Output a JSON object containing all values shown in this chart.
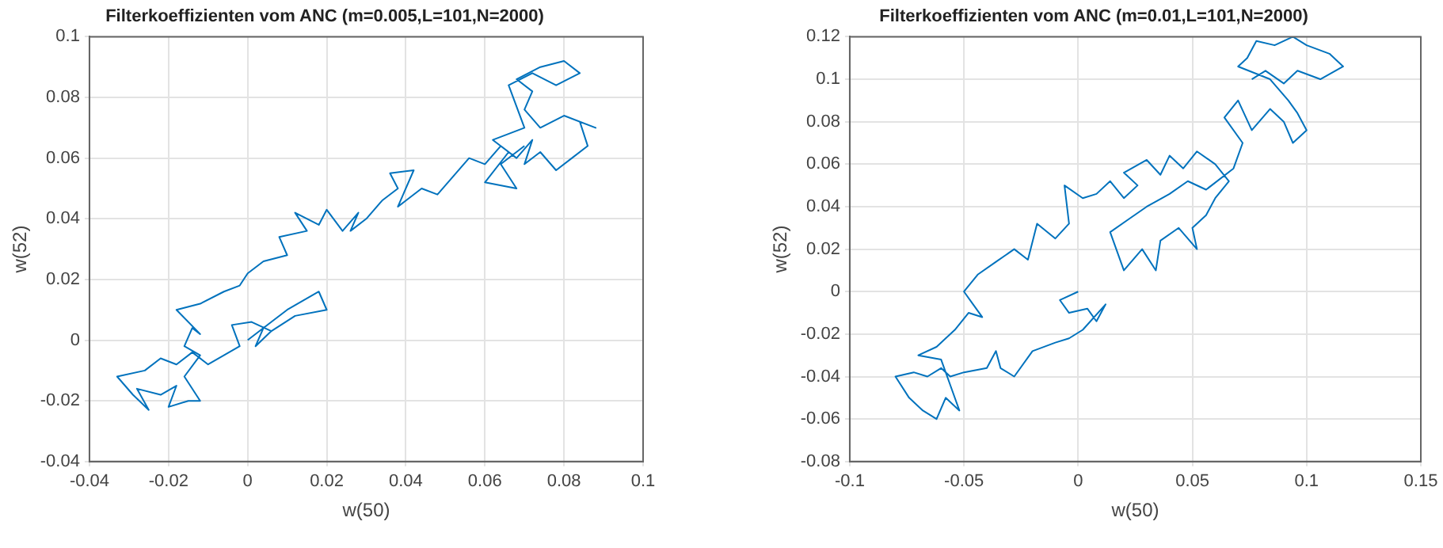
{
  "chart_data": [
    {
      "type": "line",
      "title": "Filterkoeffizienten vom ANC (m=0.005,L=101,N=2000)",
      "xlabel": "w(50)",
      "ylabel": "w(52)",
      "xlim": [
        -0.04,
        0.1
      ],
      "xticks": [
        -0.04,
        -0.02,
        0,
        0.02,
        0.04,
        0.06,
        0.08,
        0.1
      ],
      "ylim": [
        -0.04,
        0.1
      ],
      "yticks": [
        -0.04,
        -0.02,
        0,
        0.02,
        0.04,
        0.06,
        0.08,
        0.1
      ],
      "grid": true,
      "marker": "none",
      "line_style": "solid",
      "series": [
        {
          "color": "#0072bd",
          "x": [
            0,
            0.006,
            0.01,
            0.014,
            0.018,
            0.02,
            0.012,
            0.006,
            0.002,
            0.004,
            0.002,
            0.006,
            0.001,
            -0.004,
            -0.002,
            -0.006,
            -0.01,
            -0.014,
            -0.018,
            -0.022,
            -0.026,
            -0.033,
            -0.029,
            -0.025,
            -0.028,
            -0.022,
            -0.018,
            -0.02,
            -0.015,
            -0.012,
            -0.016,
            -0.012,
            -0.016,
            -0.014,
            -0.012,
            -0.018,
            -0.012,
            -0.006,
            -0.002,
            0,
            0.004,
            0.01,
            0.008,
            0.015,
            0.012,
            0.018,
            0.02,
            0.024,
            0.028,
            0.026,
            0.03,
            0.034,
            0.038,
            0.036,
            0.042,
            0.038,
            0.044,
            0.048,
            0.052,
            0.056,
            0.06,
            0.064,
            0.068,
            0.072,
            0.07,
            0.074,
            0.078,
            0.082,
            0.086,
            0.084,
            0.088,
            0.08,
            0.074,
            0.07,
            0.072,
            0.068,
            0.074,
            0.08,
            0.084,
            0.078,
            0.072,
            0.066,
            0.07,
            0.062,
            0.066,
            0.06,
            0.068,
            0.064,
            0.07
          ],
          "values": [
            0,
            0.006,
            0.01,
            0.013,
            0.016,
            0.01,
            0.008,
            0.003,
            -0.002,
            0.004,
            -0.002,
            0.003,
            0.006,
            0.005,
            -0.002,
            -0.005,
            -0.008,
            -0.004,
            -0.008,
            -0.006,
            -0.01,
            -0.012,
            -0.018,
            -0.023,
            -0.016,
            -0.018,
            -0.015,
            -0.022,
            -0.02,
            -0.02,
            -0.012,
            -0.005,
            -0.002,
            0.004,
            0.002,
            0.01,
            0.012,
            0.016,
            0.018,
            0.022,
            0.026,
            0.028,
            0.034,
            0.036,
            0.042,
            0.038,
            0.043,
            0.036,
            0.042,
            0.036,
            0.04,
            0.046,
            0.05,
            0.055,
            0.056,
            0.044,
            0.05,
            0.048,
            0.054,
            0.06,
            0.058,
            0.064,
            0.06,
            0.066,
            0.058,
            0.062,
            0.056,
            0.06,
            0.064,
            0.072,
            0.07,
            0.074,
            0.07,
            0.076,
            0.082,
            0.086,
            0.09,
            0.092,
            0.088,
            0.084,
            0.088,
            0.084,
            0.07,
            0.066,
            0.062,
            0.052,
            0.05,
            0.058,
            0.064
          ]
        }
      ]
    },
    {
      "type": "line",
      "title": "Filterkoeffizienten vom ANC (m=0.01,L=101,N=2000)",
      "xlabel": "w(50)",
      "ylabel": "w(52)",
      "xlim": [
        -0.1,
        0.15
      ],
      "xticks": [
        -0.1,
        -0.05,
        0,
        0.05,
        0.1,
        0.15
      ],
      "ylim": [
        -0.08,
        0.12
      ],
      "yticks": [
        -0.08,
        -0.06,
        -0.04,
        -0.02,
        0,
        0.02,
        0.04,
        0.06,
        0.08,
        0.1,
        0.12
      ],
      "grid": true,
      "marker": "none",
      "line_style": "solid",
      "series": [
        {
          "color": "#0072bd",
          "x": [
            0,
            -0.008,
            -0.004,
            0.004,
            0.008,
            0.012,
            0.002,
            -0.004,
            -0.01,
            -0.02,
            -0.028,
            -0.034,
            -0.036,
            -0.04,
            -0.05,
            -0.056,
            -0.06,
            -0.066,
            -0.072,
            -0.08,
            -0.074,
            -0.068,
            -0.062,
            -0.058,
            -0.052,
            -0.056,
            -0.06,
            -0.07,
            -0.062,
            -0.054,
            -0.048,
            -0.042,
            -0.046,
            -0.05,
            -0.044,
            -0.036,
            -0.028,
            -0.022,
            -0.018,
            -0.01,
            -0.004,
            -0.006,
            0.002,
            0.008,
            0.014,
            0.02,
            0.026,
            0.02,
            0.03,
            0.036,
            0.04,
            0.046,
            0.052,
            0.06,
            0.066,
            0.06,
            0.056,
            0.05,
            0.052,
            0.044,
            0.036,
            0.034,
            0.028,
            0.02,
            0.014,
            0.022,
            0.03,
            0.04,
            0.048,
            0.056,
            0.068,
            0.072,
            0.064,
            0.07,
            0.076,
            0.084,
            0.09,
            0.094,
            0.1,
            0.096,
            0.092,
            0.084,
            0.07,
            0.074,
            0.078,
            0.086,
            0.094,
            0.1,
            0.11,
            0.116,
            0.106,
            0.096,
            0.09,
            0.082,
            0.076
          ],
          "values": [
            0,
            -0.004,
            -0.01,
            -0.008,
            -0.014,
            -0.006,
            -0.018,
            -0.022,
            -0.024,
            -0.028,
            -0.04,
            -0.036,
            -0.028,
            -0.036,
            -0.038,
            -0.04,
            -0.036,
            -0.04,
            -0.038,
            -0.04,
            -0.05,
            -0.056,
            -0.06,
            -0.05,
            -0.056,
            -0.044,
            -0.032,
            -0.03,
            -0.026,
            -0.018,
            -0.01,
            -0.012,
            -0.006,
            0,
            0.008,
            0.014,
            0.02,
            0.015,
            0.032,
            0.025,
            0.032,
            0.05,
            0.044,
            0.046,
            0.052,
            0.044,
            0.05,
            0.056,
            0.062,
            0.055,
            0.064,
            0.058,
            0.066,
            0.06,
            0.052,
            0.044,
            0.036,
            0.03,
            0.02,
            0.03,
            0.024,
            0.01,
            0.02,
            0.01,
            0.028,
            0.034,
            0.04,
            0.046,
            0.052,
            0.048,
            0.058,
            0.07,
            0.082,
            0.09,
            0.076,
            0.086,
            0.08,
            0.07,
            0.076,
            0.084,
            0.09,
            0.1,
            0.106,
            0.11,
            0.118,
            0.116,
            0.12,
            0.116,
            0.112,
            0.106,
            0.1,
            0.104,
            0.098,
            0.104,
            0.1
          ]
        }
      ]
    }
  ]
}
